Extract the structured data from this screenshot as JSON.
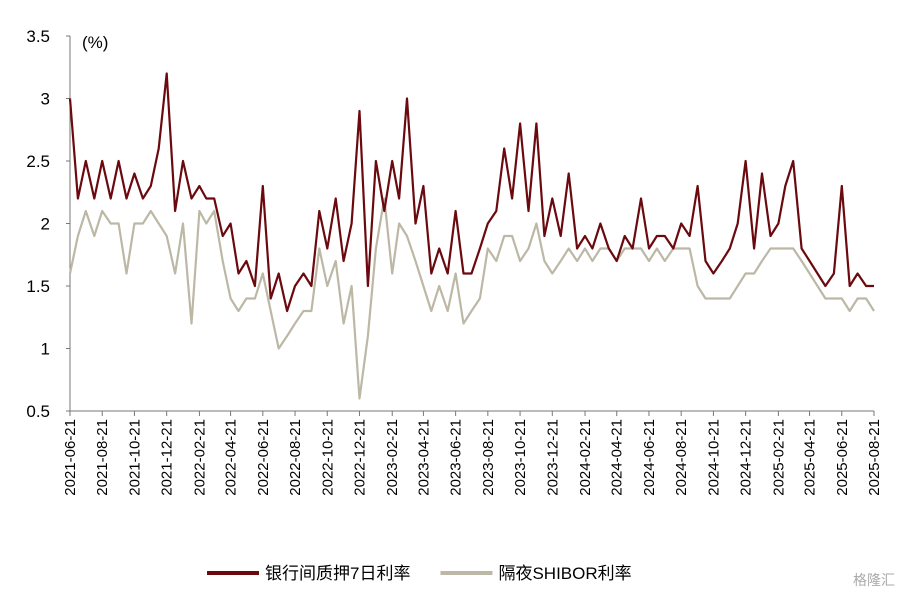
{
  "chart_data": {
    "type": "line",
    "unit_label": "(%)",
    "watermark": "格隆汇",
    "x": [
      "2021-06-21",
      "2021-07-06",
      "2021-07-21",
      "2021-08-06",
      "2021-08-21",
      "2021-09-06",
      "2021-09-21",
      "2021-10-06",
      "2021-10-21",
      "2021-11-06",
      "2021-11-21",
      "2021-12-06",
      "2021-12-21",
      "2022-01-06",
      "2022-01-21",
      "2022-02-06",
      "2022-02-21",
      "2022-03-06",
      "2022-03-21",
      "2022-04-06",
      "2022-04-21",
      "2022-05-06",
      "2022-05-21",
      "2022-06-06",
      "2022-06-21",
      "2022-07-06",
      "2022-07-21",
      "2022-08-06",
      "2022-08-21",
      "2022-09-06",
      "2022-09-21",
      "2022-10-06",
      "2022-10-21",
      "2022-11-06",
      "2022-11-21",
      "2022-12-06",
      "2022-12-21",
      "2023-01-06",
      "2023-01-21",
      "2023-02-06",
      "2023-02-21",
      "2023-03-06",
      "2023-03-21",
      "2023-04-06",
      "2023-04-21",
      "2023-05-06",
      "2023-05-21",
      "2023-06-06",
      "2023-06-21",
      "2023-07-06",
      "2023-07-21",
      "2023-08-06",
      "2023-08-21",
      "2023-09-06",
      "2023-09-21",
      "2023-10-06",
      "2023-10-21",
      "2023-11-06",
      "2023-11-21",
      "2023-12-06",
      "2023-12-21",
      "2024-01-06",
      "2024-01-21",
      "2024-02-06",
      "2024-02-21",
      "2024-03-06",
      "2024-03-21",
      "2024-04-06",
      "2024-04-21",
      "2024-05-06",
      "2024-05-21",
      "2024-06-06",
      "2024-06-21",
      "2024-07-06",
      "2024-07-21",
      "2024-08-06",
      "2024-08-21",
      "2024-09-06",
      "2024-09-21",
      "2024-10-06",
      "2024-10-21",
      "2024-11-06",
      "2024-11-21",
      "2024-12-06",
      "2024-12-21",
      "2025-01-06",
      "2025-01-21",
      "2025-02-06",
      "2025-02-21",
      "2025-03-06",
      "2025-03-21",
      "2025-04-06",
      "2025-04-21",
      "2025-05-06",
      "2025-05-21",
      "2025-06-06",
      "2025-06-21",
      "2025-07-06",
      "2025-07-21",
      "2025-08-06",
      "2025-08-21"
    ],
    "series": [
      {
        "name": "银行间质押7日利率",
        "color": "#6b0a0e",
        "values": [
          3.0,
          2.2,
          2.5,
          2.2,
          2.5,
          2.2,
          2.5,
          2.2,
          2.4,
          2.2,
          2.3,
          2.6,
          3.2,
          2.1,
          2.5,
          2.2,
          2.3,
          2.2,
          2.2,
          1.9,
          2.0,
          1.6,
          1.7,
          1.5,
          2.3,
          1.4,
          1.6,
          1.3,
          1.5,
          1.6,
          1.5,
          2.1,
          1.8,
          2.2,
          1.7,
          2.0,
          2.9,
          1.5,
          2.5,
          2.1,
          2.5,
          2.2,
          3.0,
          2.0,
          2.3,
          1.6,
          1.8,
          1.6,
          2.1,
          1.6,
          1.6,
          1.8,
          2.0,
          2.1,
          2.6,
          2.2,
          2.8,
          2.1,
          2.8,
          1.9,
          2.2,
          1.9,
          2.4,
          1.8,
          1.9,
          1.8,
          2.0,
          1.8,
          1.7,
          1.9,
          1.8,
          2.2,
          1.8,
          1.9,
          1.9,
          1.8,
          2.0,
          1.9,
          2.3,
          1.7,
          1.6,
          1.7,
          1.8,
          2.0,
          2.5,
          1.8,
          2.4,
          1.9,
          2.0,
          2.3,
          2.5,
          1.8,
          1.7,
          1.6,
          1.5,
          1.6,
          2.3,
          1.5,
          1.6,
          1.5,
          1.5
        ]
      },
      {
        "name": "隔夜SHIBOR利率",
        "color": "#bdb8a6",
        "values": [
          1.6,
          1.9,
          2.1,
          1.9,
          2.1,
          2.0,
          2.0,
          1.6,
          2.0,
          2.0,
          2.1,
          2.0,
          1.9,
          1.6,
          2.0,
          1.2,
          2.1,
          2.0,
          2.1,
          1.7,
          1.4,
          1.3,
          1.4,
          1.4,
          1.6,
          1.3,
          1.0,
          1.1,
          1.2,
          1.3,
          1.3,
          1.8,
          1.5,
          1.7,
          1.2,
          1.5,
          0.6,
          1.1,
          1.8,
          2.2,
          1.6,
          2.0,
          1.9,
          1.7,
          1.5,
          1.3,
          1.5,
          1.3,
          1.6,
          1.2,
          1.3,
          1.4,
          1.8,
          1.7,
          1.9,
          1.9,
          1.7,
          1.8,
          2.0,
          1.7,
          1.6,
          1.7,
          1.8,
          1.7,
          1.8,
          1.7,
          1.8,
          1.8,
          1.7,
          1.8,
          1.8,
          1.8,
          1.7,
          1.8,
          1.7,
          1.8,
          1.8,
          1.8,
          1.5,
          1.4,
          1.4,
          1.4,
          1.4,
          1.5,
          1.6,
          1.6,
          1.7,
          1.8,
          1.8,
          1.8,
          1.8,
          1.7,
          1.6,
          1.5,
          1.4,
          1.4,
          1.4,
          1.3,
          1.4,
          1.4,
          1.3
        ]
      }
    ],
    "xlim": [
      "2021-06-21",
      "2025-08-21"
    ],
    "xticks": [
      "2021-06-21",
      "2021-08-21",
      "2021-10-21",
      "2021-12-21",
      "2022-02-21",
      "2022-04-21",
      "2022-06-21",
      "2022-08-21",
      "2022-10-21",
      "2022-12-21",
      "2023-02-21",
      "2023-04-21",
      "2023-06-21",
      "2023-08-21",
      "2023-10-21",
      "2023-12-21",
      "2024-02-21",
      "2024-04-21",
      "2024-06-21",
      "2024-08-21",
      "2024-10-21",
      "2024-12-21",
      "2025-02-21",
      "2025-04-21",
      "2025-06-21",
      "2025-08-21"
    ],
    "ylim": [
      0.5,
      3.5
    ],
    "yticks": [
      0.5,
      1,
      1.5,
      2,
      2.5,
      3,
      3.5
    ],
    "legend": "bottom"
  }
}
